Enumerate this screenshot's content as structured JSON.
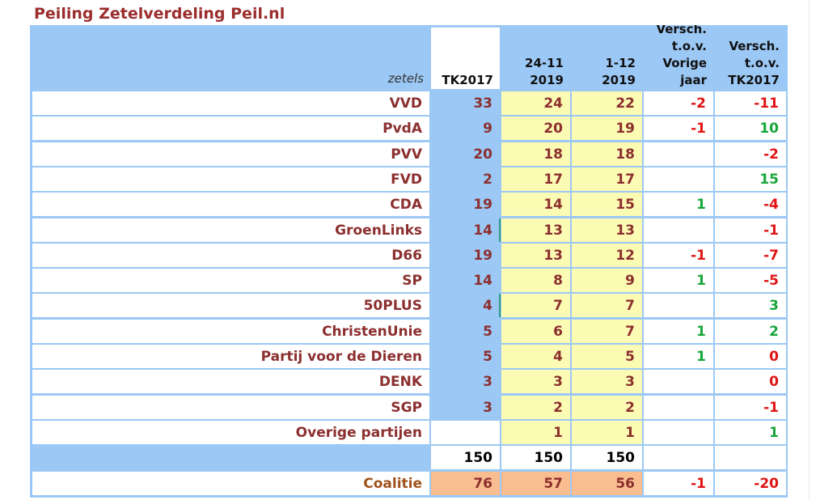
{
  "title": "Peiling Zetelverdeling Peil.nl",
  "header": {
    "zetels": "zetels",
    "tk2017": "TK2017",
    "poll1": [
      "24-11",
      "2019"
    ],
    "poll2": [
      "1-12",
      "2019"
    ],
    "diff_prev": [
      "Versch.",
      "t.o.v.",
      "Vorige",
      "jaar"
    ],
    "diff_tk": [
      "Versch.",
      "t.o.v.",
      "TK2017"
    ]
  },
  "rows": [
    {
      "party": "VVD",
      "tk2017": "33",
      "poll1": "24",
      "poll2": "22",
      "diff_prev": "-2",
      "diff_tk": "-11"
    },
    {
      "party": "PvdA",
      "tk2017": "9",
      "poll1": "20",
      "poll2": "19",
      "diff_prev": "-1",
      "diff_tk": "10"
    },
    {
      "party": "PVV",
      "tk2017": "20",
      "poll1": "18",
      "poll2": "18",
      "diff_prev": "",
      "diff_tk": "-2"
    },
    {
      "party": "FVD",
      "tk2017": "2",
      "poll1": "17",
      "poll2": "17",
      "diff_prev": "",
      "diff_tk": "15"
    },
    {
      "party": "CDA",
      "tk2017": "19",
      "poll1": "14",
      "poll2": "15",
      "diff_prev": "1",
      "diff_tk": "-4"
    },
    {
      "party": "GroenLinks",
      "tk2017": "14",
      "poll1": "13",
      "poll2": "13",
      "diff_prev": "",
      "diff_tk": "-1"
    },
    {
      "party": "D66",
      "tk2017": "19",
      "poll1": "13",
      "poll2": "12",
      "diff_prev": "-1",
      "diff_tk": "-7"
    },
    {
      "party": "SP",
      "tk2017": "14",
      "poll1": "8",
      "poll2": "9",
      "diff_prev": "1",
      "diff_tk": "-5"
    },
    {
      "party": "50PLUS",
      "tk2017": "4",
      "poll1": "7",
      "poll2": "7",
      "diff_prev": "",
      "diff_tk": "3"
    },
    {
      "party": "ChristenUnie",
      "tk2017": "5",
      "poll1": "6",
      "poll2": "7",
      "diff_prev": "1",
      "diff_tk": "2"
    },
    {
      "party": "Partij voor de Dieren",
      "tk2017": "5",
      "poll1": "4",
      "poll2": "5",
      "diff_prev": "1",
      "diff_tk": "0"
    },
    {
      "party": "DENK",
      "tk2017": "3",
      "poll1": "3",
      "poll2": "3",
      "diff_prev": "",
      "diff_tk": "0"
    },
    {
      "party": "SGP",
      "tk2017": "3",
      "poll1": "2",
      "poll2": "2",
      "diff_prev": "",
      "diff_tk": "-1"
    },
    {
      "party": "Overige partijen",
      "tk2017": "",
      "poll1": "1",
      "poll2": "1",
      "diff_prev": "",
      "diff_tk": "1"
    }
  ],
  "totals": {
    "tk2017": "150",
    "poll1": "150",
    "poll2": "150"
  },
  "coalition": {
    "label": "Coalitie",
    "tk2017": "76",
    "poll1": "57",
    "poll2": "56",
    "diff_prev": "-1",
    "diff_tk": "-20"
  },
  "colors": {
    "header_blue": "#9cc8f5",
    "poll_yellow": "#fbfbb3",
    "coalition_orange": "#f9bd8f",
    "negative": "#e11414",
    "positive": "#18a63a",
    "label": "#8c2f2f"
  }
}
